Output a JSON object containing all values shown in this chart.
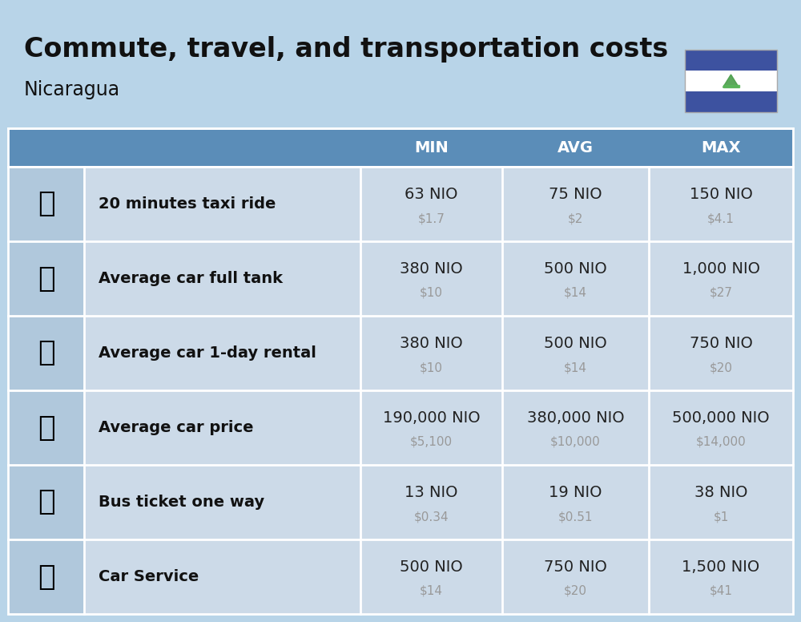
{
  "title": "Commute, travel, and transportation costs",
  "subtitle": "Nicaragua",
  "bg_color": "#b8d4e8",
  "header_bg": "#5b8db8",
  "header_text_color": "#ffffff",
  "row_bg_light": "#ccdae8",
  "row_bg_icon": "#b0c8dc",
  "label_color": "#111111",
  "value_color": "#222222",
  "usd_color": "#999999",
  "columns": [
    "MIN",
    "AVG",
    "MAX"
  ],
  "rows": [
    {
      "label": "20 minutes taxi ride",
      "emoji": "🚕",
      "min_nio": "63 NIO",
      "min_usd": "$1.7",
      "avg_nio": "75 NIO",
      "avg_usd": "$2",
      "max_nio": "150 NIO",
      "max_usd": "$4.1"
    },
    {
      "label": "Average car full tank",
      "emoji": "⛽",
      "min_nio": "380 NIO",
      "min_usd": "$10",
      "avg_nio": "500 NIO",
      "avg_usd": "$14",
      "max_nio": "1,000 NIO",
      "max_usd": "$27"
    },
    {
      "label": "Average car 1-day rental",
      "emoji": "🚙",
      "min_nio": "380 NIO",
      "min_usd": "$10",
      "avg_nio": "500 NIO",
      "avg_usd": "$14",
      "max_nio": "750 NIO",
      "max_usd": "$20"
    },
    {
      "label": "Average car price",
      "emoji": "🚗",
      "min_nio": "190,000 NIO",
      "min_usd": "$5,100",
      "avg_nio": "380,000 NIO",
      "avg_usd": "$10,000",
      "max_nio": "500,000 NIO",
      "max_usd": "$14,000"
    },
    {
      "label": "Bus ticket one way",
      "emoji": "🚌",
      "min_nio": "13 NIO",
      "min_usd": "$0.34",
      "avg_nio": "19 NIO",
      "avg_usd": "$0.51",
      "max_nio": "38 NIO",
      "max_usd": "$1"
    },
    {
      "label": "Car Service",
      "emoji": "🚗",
      "min_nio": "500 NIO",
      "min_usd": "$14",
      "avg_nio": "750 NIO",
      "avg_usd": "$20",
      "max_nio": "1,500 NIO",
      "max_usd": "$41"
    }
  ],
  "flag_blue": "#3d52a0",
  "flag_white": "#ffffff",
  "title_fontsize": 24,
  "subtitle_fontsize": 17,
  "header_fontsize": 14,
  "label_fontsize": 14,
  "value_fontsize": 14,
  "usd_fontsize": 11,
  "icon_fontsize": 26
}
